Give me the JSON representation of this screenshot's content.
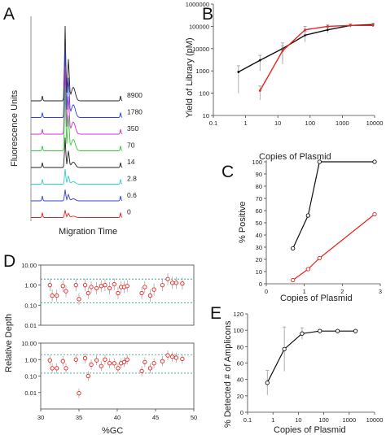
{
  "colors": {
    "black": "#111111",
    "red": "#e8231f",
    "teal": "#3aaa8c",
    "gray": "#9a9a9a"
  },
  "chart_data": [
    {
      "panel": "A",
      "type": "line",
      "xlabel": "Migration Time",
      "ylabel": "Fluorescence Units",
      "traces": [
        {
          "label": "8900",
          "color": "#222222",
          "peak": 1.0
        },
        {
          "label": "1780",
          "color": "#3340c9",
          "peak": 0.95
        },
        {
          "label": "350",
          "color": "#cc33cc",
          "peak": 0.9
        },
        {
          "label": "70",
          "color": "#33cc33",
          "peak": 0.85
        },
        {
          "label": "14",
          "color": "#222222",
          "peak": 0.4
        },
        {
          "label": "2.8",
          "color": "#33cccc",
          "peak": 0.2
        },
        {
          "label": "0.6",
          "color": "#3340c9",
          "peak": 0.15
        },
        {
          "label": "0",
          "color": "#e8231f",
          "peak": 0.1
        }
      ]
    },
    {
      "panel": "B",
      "type": "line",
      "xlabel": "Copies of Plasmid",
      "ylabel": "Yield of Library (pM)",
      "xscale": "log",
      "yscale": "log",
      "xlim": [
        0.1,
        10000
      ],
      "ylim": [
        10,
        1000000
      ],
      "xticks": [
        "0.1",
        "1",
        "10",
        "100",
        "1000",
        "10000"
      ],
      "yticks": [
        "10",
        "100",
        "1000",
        "10000",
        "100000",
        "1000000"
      ],
      "series": [
        {
          "color": "black",
          "x": [
            0.6,
            2.8,
            14,
            70,
            350,
            1780,
            8900
          ],
          "y": [
            900,
            3000,
            10000,
            40000,
            70000,
            110000,
            120000
          ],
          "err": [
            800,
            2000,
            8000,
            20000,
            20000,
            20000,
            20000
          ]
        },
        {
          "color": "red",
          "x": [
            2.8,
            14,
            70,
            350,
            1780,
            8900
          ],
          "y": [
            130,
            8000,
            70000,
            100000,
            110000,
            110000
          ],
          "err": [
            80,
            5000,
            30000,
            20000,
            15000,
            15000
          ]
        }
      ]
    },
    {
      "panel": "C",
      "type": "line",
      "xlabel": "Copies of Plasmid",
      "ylabel": "% Positive",
      "xlim": [
        0,
        3
      ],
      "ylim": [
        0,
        100
      ],
      "xticks": [
        "0",
        "1",
        "2",
        "3"
      ],
      "yticks": [
        "0",
        "10",
        "20",
        "30",
        "40",
        "50",
        "60",
        "70",
        "80",
        "90",
        "100"
      ],
      "series": [
        {
          "color": "black",
          "x": [
            0.7,
            1.1,
            1.4,
            2.85
          ],
          "y": [
            29,
            56,
            100,
            100
          ]
        },
        {
          "color": "red",
          "x": [
            0.7,
            1.1,
            1.4,
            2.85
          ],
          "y": [
            3,
            12,
            21,
            57
          ]
        }
      ]
    },
    {
      "panel": "D",
      "type": "scatter",
      "xlabel": "%GC",
      "ylabel": "Relative Depth",
      "xlim": [
        30,
        50
      ],
      "xticks": [
        "30",
        "35",
        "40",
        "45",
        "50"
      ],
      "subplots": [
        {
          "yticks": [
            "0.01",
            "0.10",
            "1.00",
            "10.00"
          ],
          "ylim": [
            0.01,
            10
          ],
          "threshold_lines": [
            2,
            0.13
          ],
          "x": [
            31.2,
            31.5,
            32.1,
            32.9,
            33.3,
            34.6,
            35.0,
            35.8,
            36.2,
            36.6,
            37.3,
            37.9,
            38.4,
            39.0,
            39.6,
            40.1,
            40.5,
            40.9,
            41.3,
            43.2,
            43.6,
            44.3,
            44.8,
            45.9,
            46.6,
            47.2,
            47.7,
            48.5
          ],
          "y": [
            1.0,
            0.3,
            0.3,
            0.9,
            0.5,
            1.0,
            0.2,
            1.0,
            0.4,
            0.8,
            0.7,
            0.9,
            1.0,
            0.7,
            1.1,
            0.4,
            0.8,
            0.8,
            0.9,
            0.4,
            0.8,
            0.3,
            0.6,
            1.0,
            2.0,
            1.3,
            1.3,
            1.2
          ]
        },
        {
          "yticks": [
            "0.01",
            "0.10",
            "1.00",
            "10.00"
          ],
          "ylim": [
            0.001,
            10
          ],
          "threshold_lines": [
            2,
            0.15
          ],
          "x": [
            31.2,
            31.5,
            32.1,
            32.9,
            33.3,
            34.6,
            35.0,
            35.8,
            36.2,
            36.6,
            37.3,
            37.9,
            38.4,
            39.0,
            39.6,
            40.1,
            40.5,
            40.9,
            41.3,
            43.2,
            43.6,
            44.3,
            44.8,
            45.9,
            46.6,
            47.2,
            47.7,
            48.5
          ],
          "y": [
            0.9,
            0.3,
            0.3,
            0.8,
            0.3,
            1.0,
            0.009,
            1.2,
            0.1,
            0.5,
            0.9,
            0.4,
            1.0,
            0.6,
            0.6,
            0.3,
            0.6,
            0.7,
            1.0,
            0.2,
            0.7,
            0.3,
            0.6,
            0.8,
            1.8,
            1.5,
            1.3,
            1.1
          ]
        }
      ]
    },
    {
      "panel": "E",
      "type": "line",
      "xlabel": "Copies of Plasmid",
      "ylabel": "% Detected # of Amplicons",
      "xscale": "log",
      "xlim": [
        0.1,
        10000
      ],
      "ylim": [
        0,
        120
      ],
      "xticks": [
        "0.1",
        "1",
        "10",
        "100",
        "1000",
        "10000"
      ],
      "yticks": [
        "0",
        "20",
        "40",
        "60",
        "80",
        "100",
        "120"
      ],
      "series": [
        {
          "color": "black",
          "x": [
            0.6,
            2.8,
            14,
            70,
            350,
            1780
          ],
          "y": [
            36,
            77,
            96,
            99,
            99,
            99
          ],
          "err": [
            15,
            27,
            7,
            2,
            1,
            1
          ]
        }
      ]
    }
  ]
}
